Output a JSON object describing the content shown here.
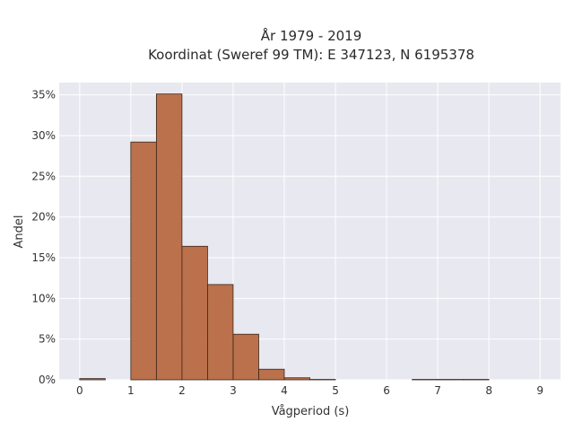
{
  "chart_data": {
    "type": "bar",
    "title_line1": "År 1979 - 2019",
    "title_line2": "Koordinat (Sweref 99 TM): E 347123, N 6195378",
    "xlabel": "Vågperiod (s)",
    "ylabel": "Andel",
    "x_ticks": [
      "0",
      "1",
      "2",
      "3",
      "4",
      "5",
      "6",
      "7",
      "8",
      "9"
    ],
    "y_ticks": [
      "0%",
      "5%",
      "10%",
      "15%",
      "20%",
      "25%",
      "30%",
      "35%"
    ],
    "xlim": [
      -0.4,
      9.4
    ],
    "ylim": [
      0,
      36.5
    ],
    "bin_width": 0.5,
    "bins": [
      {
        "x0": 0.0,
        "value": 0.15
      },
      {
        "x0": 1.0,
        "value": 29.2
      },
      {
        "x0": 1.5,
        "value": 35.1
      },
      {
        "x0": 2.0,
        "value": 16.4
      },
      {
        "x0": 2.5,
        "value": 11.7
      },
      {
        "x0": 3.0,
        "value": 5.6
      },
      {
        "x0": 3.5,
        "value": 1.3
      },
      {
        "x0": 4.0,
        "value": 0.25
      },
      {
        "x0": 4.5,
        "value": 0.05
      },
      {
        "x0": 6.5,
        "value": 0.05
      },
      {
        "x0": 7.0,
        "value": 0.05
      },
      {
        "x0": 7.5,
        "value": 0.05
      }
    ],
    "grid": true,
    "colors": {
      "bar_fill": "#b5643a",
      "bar_stroke": "#3a2418",
      "plot_bg": "#e8e8f0",
      "grid": "#ffffff"
    }
  }
}
